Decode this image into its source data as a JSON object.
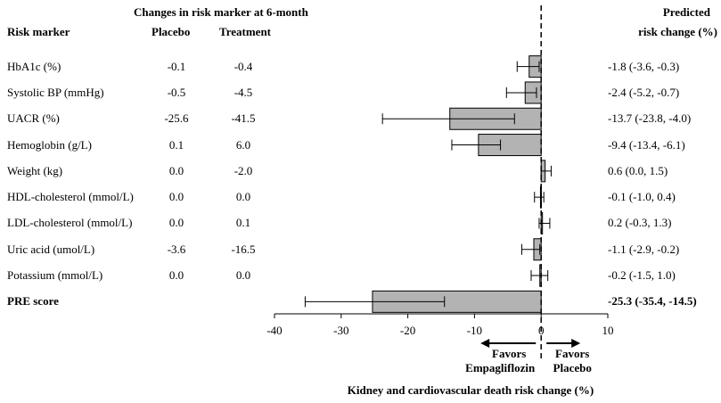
{
  "header": {
    "risk_marker": "Risk marker",
    "changes_title": "Changes in risk marker at 6-month",
    "placebo": "Placebo",
    "treatment": "Treatment",
    "predicted_line1": "Predicted",
    "predicted_line2": "risk change (%)"
  },
  "chart_data": {
    "type": "bar",
    "orientation": "horizontal",
    "xlabel": "Kidney and cardiovascular death risk change (%)",
    "xlim": [
      -40,
      10
    ],
    "xticks": [
      "-40",
      "-30",
      "-20",
      "-10",
      "0",
      "10"
    ],
    "reference_line": 0,
    "rows": [
      {
        "marker": "HbA1c (%)",
        "placebo": "-0.1",
        "treatment": "-0.4",
        "estimate": -1.8,
        "lo": -3.6,
        "hi": -0.3,
        "ci_text": "-1.8 (-3.6, -0.3)",
        "bold": false
      },
      {
        "marker": "Systolic BP (mmHg)",
        "placebo": "-0.5",
        "treatment": "-4.5",
        "estimate": -2.4,
        "lo": -5.2,
        "hi": -0.7,
        "ci_text": "-2.4 (-5.2, -0.7)",
        "bold": false
      },
      {
        "marker": "UACR (%)",
        "placebo": "-25.6",
        "treatment": "-41.5",
        "estimate": -13.7,
        "lo": -23.8,
        "hi": -4.0,
        "ci_text": "-13.7 (-23.8, -4.0)",
        "bold": false
      },
      {
        "marker": "Hemoglobin (g/L)",
        "placebo": "0.1",
        "treatment": "6.0",
        "estimate": -9.4,
        "lo": -13.4,
        "hi": -6.1,
        "ci_text": "-9.4 (-13.4, -6.1)",
        "bold": false
      },
      {
        "marker": "Weight (kg)",
        "placebo": "0.0",
        "treatment": "-2.0",
        "estimate": 0.6,
        "lo": 0.0,
        "hi": 1.5,
        "ci_text": "0.6 (0.0, 1.5)",
        "bold": false
      },
      {
        "marker": "HDL-cholesterol (mmol/L)",
        "placebo": "0.0",
        "treatment": "0.0",
        "estimate": -0.1,
        "lo": -1.0,
        "hi": 0.4,
        "ci_text": "-0.1 (-1.0, 0.4)",
        "bold": false
      },
      {
        "marker": "LDL-cholesterol (mmol/L)",
        "placebo": "0.0",
        "treatment": "0.1",
        "estimate": 0.2,
        "lo": -0.3,
        "hi": 1.3,
        "ci_text": "0.2 (-0.3, 1.3)",
        "bold": false
      },
      {
        "marker": "Uric acid (umol/L)",
        "placebo": "-3.6",
        "treatment": "-16.5",
        "estimate": -1.1,
        "lo": -2.9,
        "hi": -0.2,
        "ci_text": "-1.1 (-2.9, -0.2)",
        "bold": false
      },
      {
        "marker": "Potassium (mmol/L)",
        "placebo": "0.0",
        "treatment": "0.0",
        "estimate": -0.2,
        "lo": -1.5,
        "hi": 1.0,
        "ci_text": "-0.2 (-1.5, 1.0)",
        "bold": false
      },
      {
        "marker": "PRE score",
        "placebo": "",
        "treatment": "",
        "estimate": -25.3,
        "lo": -35.4,
        "hi": -14.5,
        "ci_text": "-25.3 (-35.4, -14.5)",
        "bold": true
      }
    ],
    "annotations": {
      "left": [
        "Favors",
        "Empagliflozin"
      ],
      "right": [
        "Favors",
        "Placebo"
      ]
    },
    "colors": {
      "bar_fill": "#b3b3b3",
      "bar_stroke": "#000000"
    }
  }
}
